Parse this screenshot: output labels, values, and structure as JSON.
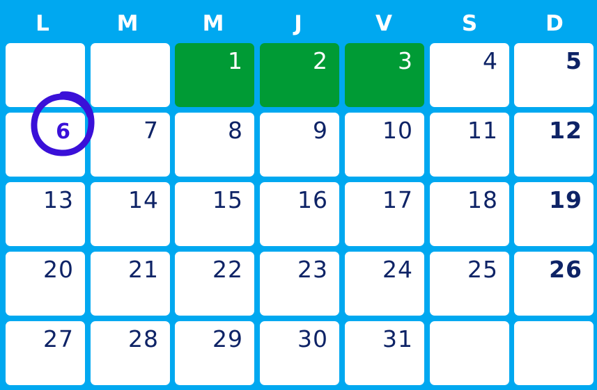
{
  "days": [
    "L",
    "M",
    "M",
    "J",
    "V",
    "S",
    "D"
  ],
  "weeks": [
    [
      {
        "n": ""
      },
      {
        "n": ""
      },
      {
        "n": "1",
        "green": true
      },
      {
        "n": "2",
        "green": true
      },
      {
        "n": "3",
        "green": true
      },
      {
        "n": "4"
      },
      {
        "n": "5",
        "sunday": true
      }
    ],
    [
      {
        "n": "6",
        "circled": true
      },
      {
        "n": "7"
      },
      {
        "n": "8"
      },
      {
        "n": "9"
      },
      {
        "n": "10"
      },
      {
        "n": "11"
      },
      {
        "n": "12",
        "sunday": true
      }
    ],
    [
      {
        "n": "13"
      },
      {
        "n": "14"
      },
      {
        "n": "15"
      },
      {
        "n": "16"
      },
      {
        "n": "17"
      },
      {
        "n": "18"
      },
      {
        "n": "19",
        "sunday": true
      }
    ],
    [
      {
        "n": "20"
      },
      {
        "n": "21"
      },
      {
        "n": "22"
      },
      {
        "n": "23"
      },
      {
        "n": "24"
      },
      {
        "n": "25"
      },
      {
        "n": "26",
        "sunday": true
      }
    ],
    [
      {
        "n": "27"
      },
      {
        "n": "28"
      },
      {
        "n": "29"
      },
      {
        "n": "30"
      },
      {
        "n": "31"
      },
      {
        "n": ""
      },
      {
        "n": ""
      }
    ]
  ],
  "colors": {
    "background": "#00a8f0",
    "highlight": "#009b35",
    "number": "#0e2366",
    "circle": "#3a10d8"
  },
  "icons": {
    "ring": "circle-mark-icon"
  }
}
